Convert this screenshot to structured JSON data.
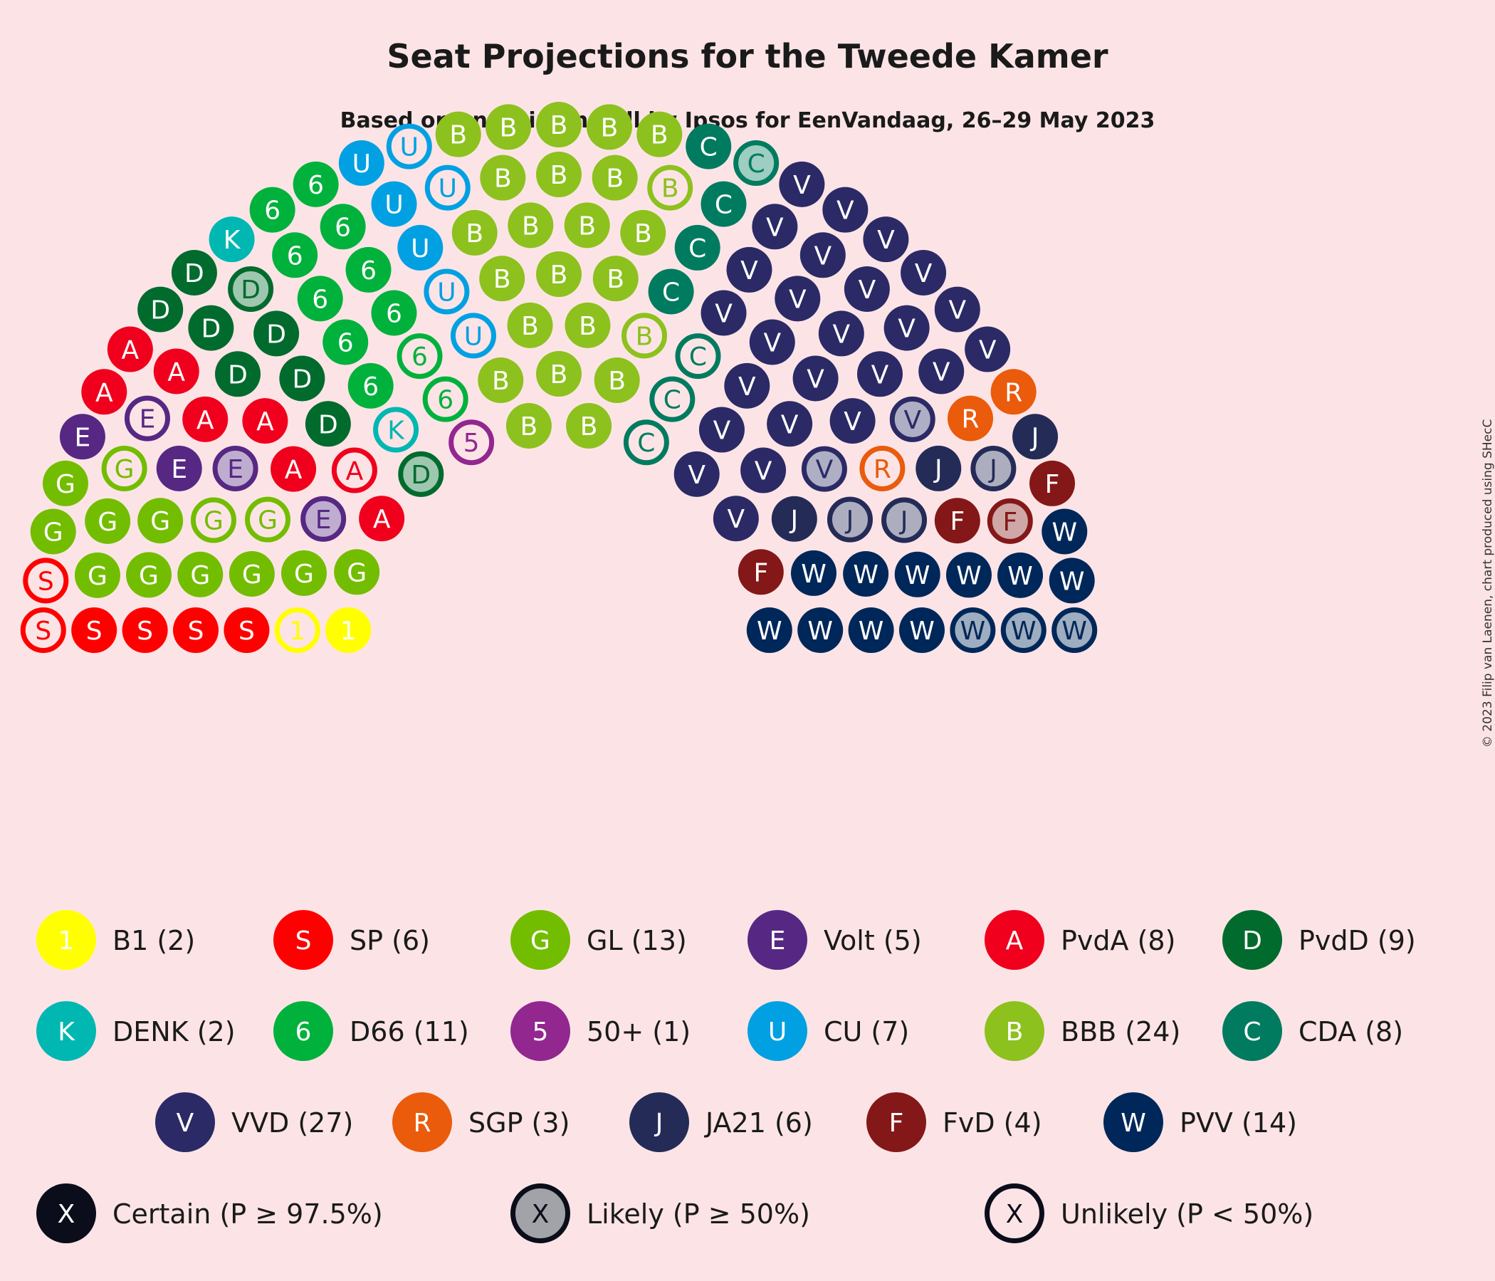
{
  "title": "Seat Projections for the Tweede Kamer",
  "subtitle": "Based on an Opinion Poll by Ipsos for EenVandaag, 26–29 May 2023",
  "copyright": "© 2023 Filip van Laenen, chart produced using SHecC",
  "chart_data": {
    "type": "parliament",
    "total_seats": 150,
    "parties": [
      {
        "key": "1",
        "label": "B1 (2)",
        "seats": 2,
        "certain": 1,
        "likely": 0,
        "unlikely": 1,
        "color": "#ffff00",
        "text": "#ffffff"
      },
      {
        "key": "S",
        "label": "SP (6)",
        "seats": 6,
        "certain": 4,
        "likely": 0,
        "unlikely": 2,
        "color": "#ff0000",
        "text": "#ffffff"
      },
      {
        "key": "G",
        "label": "GL (13)",
        "seats": 13,
        "certain": 10,
        "likely": 0,
        "unlikely": 3,
        "color": "#73bd00",
        "text": "#ffffff"
      },
      {
        "key": "E",
        "label": "Volt (5)",
        "seats": 5,
        "certain": 2,
        "likely": 2,
        "unlikely": 1,
        "color": "#562883",
        "text": "#ffffff"
      },
      {
        "key": "A",
        "label": "PvdA (8)",
        "seats": 8,
        "certain": 7,
        "likely": 0,
        "unlikely": 1,
        "color": "#f0001c",
        "text": "#ffffff"
      },
      {
        "key": "D",
        "label": "PvdD (9)",
        "seats": 9,
        "certain": 7,
        "likely": 2,
        "unlikely": 0,
        "color": "#006b2d",
        "text": "#ffffff"
      },
      {
        "key": "K",
        "label": "DENK (2)",
        "seats": 2,
        "certain": 1,
        "likely": 0,
        "unlikely": 1,
        "color": "#00b7b2",
        "text": "#ffffff"
      },
      {
        "key": "6",
        "label": "D66 (11)",
        "seats": 11,
        "certain": 9,
        "likely": 0,
        "unlikely": 2,
        "color": "#00b13c",
        "text": "#ffffff"
      },
      {
        "key": "5",
        "label": "50+ (1)",
        "seats": 1,
        "certain": 0,
        "likely": 0,
        "unlikely": 1,
        "color": "#92278f",
        "text": "#ffffff"
      },
      {
        "key": "U",
        "label": "CU (7)",
        "seats": 7,
        "certain": 3,
        "likely": 0,
        "unlikely": 4,
        "color": "#00a0e2",
        "text": "#ffffff"
      },
      {
        "key": "B",
        "label": "BBB (24)",
        "seats": 24,
        "certain": 22,
        "likely": 0,
        "unlikely": 2,
        "color": "#8dc11e",
        "text": "#ffffff"
      },
      {
        "key": "C",
        "label": "CDA (8)",
        "seats": 8,
        "certain": 4,
        "likely": 1,
        "unlikely": 3,
        "color": "#007b5f",
        "text": "#ffffff"
      },
      {
        "key": "V",
        "label": "VVD (27)",
        "seats": 27,
        "certain": 25,
        "likely": 2,
        "unlikely": 0,
        "color": "#2b2a66",
        "text": "#ffffff"
      },
      {
        "key": "R",
        "label": "SGP (3)",
        "seats": 3,
        "certain": 2,
        "likely": 0,
        "unlikely": 1,
        "color": "#ea5b0c",
        "text": "#ffffff"
      },
      {
        "key": "J",
        "label": "JA21 (6)",
        "seats": 6,
        "certain": 3,
        "likely": 3,
        "unlikely": 0,
        "color": "#242b57",
        "text": "#ffffff"
      },
      {
        "key": "F",
        "label": "FvD (4)",
        "seats": 4,
        "certain": 3,
        "likely": 1,
        "unlikely": 0,
        "color": "#841818",
        "text": "#ffffff"
      },
      {
        "key": "W",
        "label": "PVV (14)",
        "seats": 14,
        "certain": 11,
        "likely": 3,
        "unlikely": 0,
        "color": "#002759",
        "text": "#ffffff"
      }
    ],
    "legend_certainty": [
      {
        "key": "X",
        "label": "Certain (P ≥ 97.5%)",
        "style": "certain"
      },
      {
        "key": "X",
        "label": "Likely (P ≥ 50%)",
        "style": "likely"
      },
      {
        "key": "X",
        "label": "Unlikely (P < 50%)",
        "style": "unlikely"
      }
    ]
  }
}
